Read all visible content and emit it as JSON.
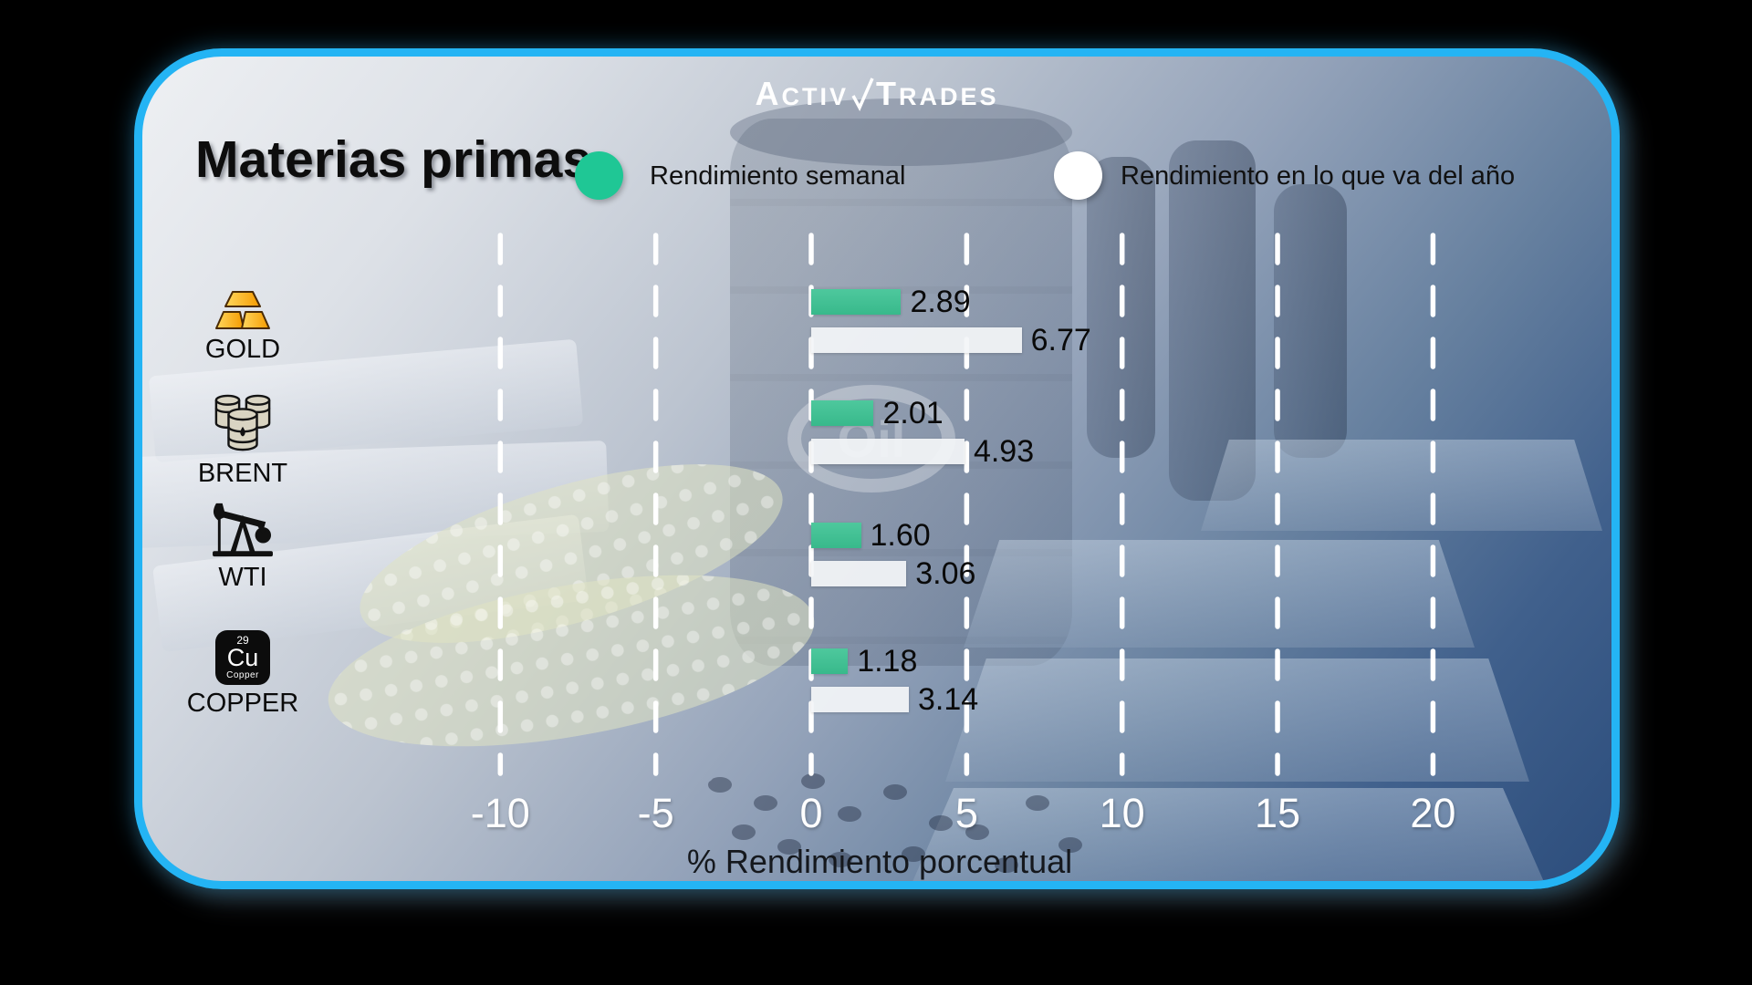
{
  "brand": {
    "l1": "A",
    "l2": "CTIV",
    "l3": "T",
    "l4": "RADES",
    "check_icon": "check-slash"
  },
  "header": {
    "title": "Materias primas",
    "legend": [
      {
        "label": "Rendimiento semanal",
        "color": "#1fc795"
      },
      {
        "label": "Rendimiento en lo que va del año",
        "color": "#ffffff"
      }
    ]
  },
  "chart_data": {
    "type": "bar",
    "orientation": "horizontal",
    "title": "Materias primas",
    "categories": [
      "GOLD",
      "BRENT",
      "WTI",
      "COPPER"
    ],
    "series": [
      {
        "name": "Rendimiento semanal",
        "color": "#3cbd90",
        "values": [
          2.89,
          2.01,
          1.6,
          1.18
        ]
      },
      {
        "name": "Rendimiento en lo que va del año",
        "color": "#f1f3f6",
        "values": [
          6.77,
          4.93,
          3.06,
          3.14
        ]
      }
    ],
    "x_ticks": [
      -10,
      -5,
      0,
      5,
      10,
      15,
      20
    ],
    "xlim": [
      -12.5,
      22.5
    ],
    "xlabel": "% Rendimiento porcentual",
    "grid": "dashed-vertical-white",
    "legend_position": "top"
  },
  "rows": [
    {
      "label": "GOLD",
      "icon": "gold-bars-icon",
      "weekly_label": "2.89",
      "ytd_label": "6.77"
    },
    {
      "label": "BRENT",
      "icon": "oil-barrels-icon",
      "weekly_label": "2.01",
      "ytd_label": "4.93"
    },
    {
      "label": "WTI",
      "icon": "pump-jack-icon",
      "weekly_label": "1.60",
      "ytd_label": "3.06"
    },
    {
      "label": "COPPER",
      "icon": "copper-element-icon",
      "weekly_label": "1.18",
      "ytd_label": "3.14"
    }
  ],
  "copper_tile": {
    "number": "29",
    "symbol": "Cu",
    "name": "Copper"
  },
  "axis": {
    "xlabel": "% Rendimiento porcentual"
  },
  "decor": {
    "oil_text": "Oil"
  },
  "colors": {
    "border": "#24b4f4",
    "green": "#1fc795",
    "bar_green": "#3cbd90",
    "bar_white": "#f1f3f6"
  }
}
